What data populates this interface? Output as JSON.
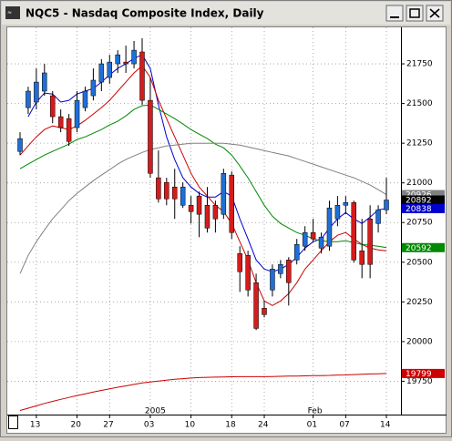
{
  "window": {
    "title": "NQC5 - Nasdaq Composite Index, Daily"
  },
  "chart_data": {
    "type": "candlestick",
    "categories": [
      null,
      null,
      "13",
      null,
      null,
      null,
      null,
      "20",
      null,
      null,
      null,
      "27",
      null,
      null,
      null,
      null,
      "03",
      null,
      null,
      null,
      null,
      "10",
      null,
      null,
      null,
      null,
      "18",
      null,
      null,
      null,
      "24",
      null,
      null,
      null,
      null,
      null,
      "01",
      null,
      null,
      null,
      "07",
      null,
      null,
      null,
      null,
      "14"
    ],
    "period_labels": [
      null,
      null,
      null,
      null,
      null,
      null,
      null,
      null,
      null,
      null,
      null,
      null,
      null,
      null,
      null,
      null,
      "2005",
      null,
      null,
      null,
      null,
      null,
      null,
      null,
      null,
      null,
      null,
      null,
      null,
      null,
      null,
      null,
      null,
      null,
      null,
      null,
      "Feb",
      null,
      null,
      null,
      null,
      null,
      null,
      null,
      null,
      null
    ],
    "open": [
      21198,
      21474,
      21509,
      21578,
      21549,
      21417,
      21405,
      21348,
      21474,
      21549,
      21635,
      21664,
      21750,
      21761,
      21750,
      21825,
      21520,
      21032,
      21003,
      20974,
      20859,
      20859,
      20917,
      20859,
      20859,
      20802,
      21049,
      20555,
      20543,
      20371,
      20210,
      20325,
      20428,
      20514,
      20514,
      20601,
      20687,
      20589,
      20601,
      20773,
      20859,
      20876,
      20572,
      20773,
      20744,
      20830
    ],
    "high": [
      21319,
      21606,
      21721,
      21750,
      21578,
      21463,
      21434,
      21578,
      21606,
      21721,
      21779,
      21807,
      21836,
      21865,
      21894,
      21911,
      21664,
      21204,
      21032,
      21089,
      21003,
      20917,
      20945,
      20974,
      20888,
      21089,
      21072,
      20601,
      20572,
      20428,
      20256,
      20486,
      20514,
      20532,
      20647,
      20727,
      20773,
      20687,
      20888,
      20917,
      20917,
      20888,
      20773,
      20859,
      20859,
      21032
    ],
    "low": [
      21175,
      21434,
      21463,
      21549,
      21376,
      21319,
      21233,
      21319,
      21451,
      21520,
      21578,
      21624,
      21693,
      21693,
      21721,
      21491,
      21032,
      20876,
      20859,
      20773,
      20842,
      20744,
      20658,
      20687,
      20687,
      20773,
      20647,
      20313,
      20284,
      20072,
      20152,
      20284,
      20399,
      20227,
      20486,
      20572,
      20629,
      20555,
      20572,
      20727,
      20802,
      20497,
      20399,
      20399,
      20687,
      20802
    ],
    "close": [
      21279,
      21578,
      21635,
      21693,
      21417,
      21348,
      21261,
      21520,
      21578,
      21647,
      21750,
      21761,
      21807,
      21750,
      21836,
      21520,
      21060,
      20899,
      20899,
      20899,
      20974,
      20819,
      20802,
      20715,
      20773,
      21060,
      20687,
      20440,
      20325,
      20083,
      20170,
      20457,
      20486,
      20371,
      20612,
      20687,
      20647,
      20658,
      20842,
      20859,
      20876,
      20514,
      20486,
      20486,
      20830,
      20892
    ],
    "up_color": "#1f6fd6",
    "down_color": "#d41c1c",
    "close_tag_color": "#000000",
    "lines": [
      {
        "color": "#0000cc",
        "values": [
          null,
          21417,
          21509,
          21566,
          21560,
          21509,
          21520,
          21560,
          21578,
          21595,
          21635,
          21681,
          21721,
          21750,
          21784,
          21807,
          21721,
          21491,
          21290,
          21147,
          21032,
          20974,
          20934,
          20911,
          20911,
          20945,
          20917,
          20773,
          20647,
          20514,
          20457,
          20440,
          20457,
          20486,
          20532,
          20589,
          20629,
          20647,
          20715,
          20773,
          20813,
          20773,
          20744,
          20784,
          20830,
          20838
        ]
      },
      {
        "color": "#cc0000",
        "values": [
          21175,
          21233,
          21290,
          21336,
          21359,
          21348,
          21336,
          21359,
          21394,
          21434,
          21474,
          21520,
          21578,
          21635,
          21693,
          21738,
          21664,
          21520,
          21405,
          21290,
          21175,
          21060,
          20974,
          20917,
          20859,
          20819,
          20744,
          20629,
          20514,
          20371,
          20256,
          20227,
          20256,
          20302,
          20371,
          20457,
          20514,
          20572,
          20629,
          20670,
          20687,
          20647,
          20612,
          20589,
          20578,
          20572
        ]
      },
      {
        "color": "#008800",
        "tag": true,
        "values": [
          21089,
          21118,
          21147,
          21175,
          21198,
          21221,
          21244,
          21273,
          21290,
          21313,
          21336,
          21365,
          21388,
          21422,
          21463,
          21486,
          21491,
          21463,
          21434,
          21405,
          21371,
          21336,
          21307,
          21279,
          21244,
          21221,
          21175,
          21106,
          21032,
          20945,
          20859,
          20790,
          20744,
          20715,
          20687,
          20670,
          20647,
          20635,
          20629,
          20629,
          20635,
          20624,
          20612,
          20606,
          20601,
          20592
        ]
      },
      {
        "color": "#808080",
        "tag": true,
        "values": [
          20428,
          20543,
          20629,
          20704,
          20773,
          20830,
          20888,
          20934,
          20974,
          21014,
          21049,
          21083,
          21118,
          21147,
          21170,
          21192,
          21210,
          21221,
          21233,
          21238,
          21244,
          21250,
          21250,
          21250,
          21250,
          21250,
          21244,
          21238,
          21227,
          21215,
          21204,
          21192,
          21181,
          21170,
          21152,
          21135,
          21118,
          21101,
          21083,
          21066,
          21049,
          21032,
          21009,
          20986,
          20957,
          20926
        ]
      },
      {
        "color": "#cc0000",
        "tag": true,
        "values": [
          19566,
          19580,
          19595,
          19610,
          19623,
          19636,
          19648,
          19660,
          19671,
          19682,
          19692,
          19702,
          19712,
          19721,
          19730,
          19739,
          19745,
          19751,
          19757,
          19762,
          19766,
          19770,
          19773,
          19775,
          19776,
          19777,
          19778,
          19779,
          19779,
          19779,
          19779,
          19780,
          19781,
          19782,
          19783,
          19784,
          19785,
          19786,
          19787,
          19789,
          19790,
          19792,
          19794,
          19796,
          19797,
          19799
        ]
      }
    ],
    "blue_tag_line": 0,
    "ylim": [
      19540,
      21980
    ],
    "yticks": [
      19750,
      20000,
      20250,
      20500,
      20750,
      21000,
      21250,
      21500,
      21750
    ],
    "grid": true
  }
}
